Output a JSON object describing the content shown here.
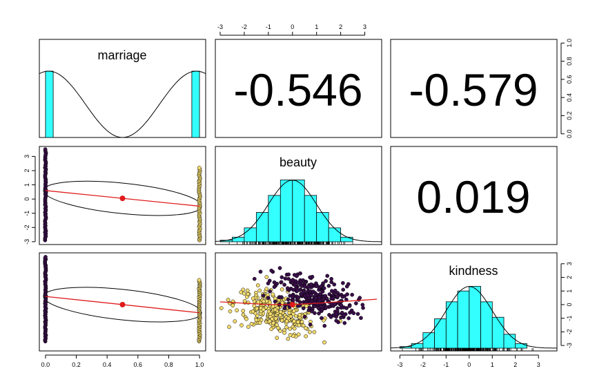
{
  "colors": {
    "histogram_fill": "#33ffff",
    "group_0": "#3a0f4a",
    "group_1": "#f3dc6e",
    "fit_line": "#e01b1b",
    "center_point": "#e01b1b"
  },
  "variables": [
    "marriage",
    "beauty",
    "kindness"
  ],
  "axes": {
    "top_ticks": [
      "-3",
      "-2",
      "-1",
      "0",
      "1",
      "2",
      "3"
    ],
    "right_ticks": [
      "0.0",
      "0.2",
      "0.4",
      "0.6",
      "0.8",
      "1.0"
    ],
    "left_ticks": [
      "-3",
      "-2",
      "-1",
      "0",
      "1",
      "2",
      "3"
    ],
    "bottom_ticks": [
      "0.0",
      "0.2",
      "0.4",
      "0.6",
      "0.8",
      "1.0"
    ],
    "right_ticks_kindness": [
      "-3",
      "-2",
      "-1",
      "0",
      "1",
      "2",
      "3"
    ],
    "bottom_ticks_kindness": [
      "-3",
      "-2",
      "-1",
      "0",
      "1",
      "2",
      "3"
    ]
  },
  "correlations": {
    "marriage_beauty": "-0.546",
    "marriage_kindness": "-0.579",
    "beauty_kindness": "0.019"
  },
  "chart_data": [
    {
      "type": "bar",
      "title": "marriage",
      "panel": "diagonal-1",
      "bins": [
        [
          0.0,
          0.05
        ],
        [
          0.95,
          1.0
        ]
      ],
      "values": [
        0.5,
        0.5
      ],
      "density_shape": "bimodal",
      "xlim": [
        -0.04,
        1.04
      ]
    },
    {
      "type": "bar",
      "title": "beauty",
      "panel": "diagonal-2",
      "bin_edges": [
        -3.0,
        -2.5,
        -2.0,
        -1.5,
        -1.0,
        -0.5,
        0.0,
        0.5,
        1.0,
        1.5,
        2.0,
        2.5
      ],
      "values": [
        0.01,
        0.03,
        0.09,
        0.19,
        0.3,
        0.4,
        0.4,
        0.3,
        0.19,
        0.09,
        0.03
      ],
      "xlim": [
        -3.2,
        3.7
      ],
      "ylim": [
        0,
        0.42
      ]
    },
    {
      "type": "bar",
      "title": "kindness",
      "panel": "diagonal-3",
      "bin_edges": [
        -3.0,
        -2.5,
        -2.0,
        -1.5,
        -1.0,
        -0.5,
        0.0,
        0.5,
        1.0,
        1.5,
        2.0,
        2.5
      ],
      "values": [
        0.01,
        0.03,
        0.1,
        0.19,
        0.3,
        0.37,
        0.4,
        0.3,
        0.2,
        0.09,
        0.03
      ],
      "xlim": [
        -3.4,
        3.8
      ],
      "ylim": [
        0,
        0.42
      ]
    },
    {
      "type": "scatter",
      "panel": "marriage-vs-beauty",
      "x_groups": [
        0,
        1
      ],
      "y_range_group0": [
        -2.9,
        3.5
      ],
      "y_range_group1": [
        -2.9,
        2.2
      ],
      "center": [
        0.5,
        0.05
      ],
      "fit_line": [
        [
          0.0,
          0.6
        ],
        [
          1.0,
          -0.5
        ]
      ],
      "xlim": [
        -0.04,
        1.04
      ],
      "ylim": [
        -3.2,
        3.7
      ]
    },
    {
      "type": "scatter",
      "panel": "marriage-vs-kindness",
      "x_groups": [
        0,
        1
      ],
      "y_range_group0": [
        -2.7,
        3.5
      ],
      "y_range_group1": [
        -2.7,
        1.8
      ],
      "center": [
        0.5,
        0.0
      ],
      "fit_line": [
        [
          0.0,
          0.6
        ],
        [
          1.0,
          -0.6
        ]
      ],
      "xlim": [
        -0.04,
        1.04
      ],
      "ylim": [
        -3.4,
        3.8
      ]
    },
    {
      "type": "scatter",
      "panel": "beauty-vs-kindness",
      "group0_center": [
        0.9,
        0.6
      ],
      "group1_center": [
        -0.7,
        -0.6
      ],
      "center": [
        0.0,
        0.0
      ],
      "fit_line": [
        [
          -3.0,
          0.2
        ],
        [
          -1.0,
          0.0
        ],
        [
          0.0,
          0.0
        ],
        [
          1.0,
          0.1
        ],
        [
          3.5,
          0.4
        ]
      ],
      "xlim": [
        -3.2,
        3.7
      ],
      "ylim": [
        -3.4,
        3.8
      ]
    }
  ]
}
